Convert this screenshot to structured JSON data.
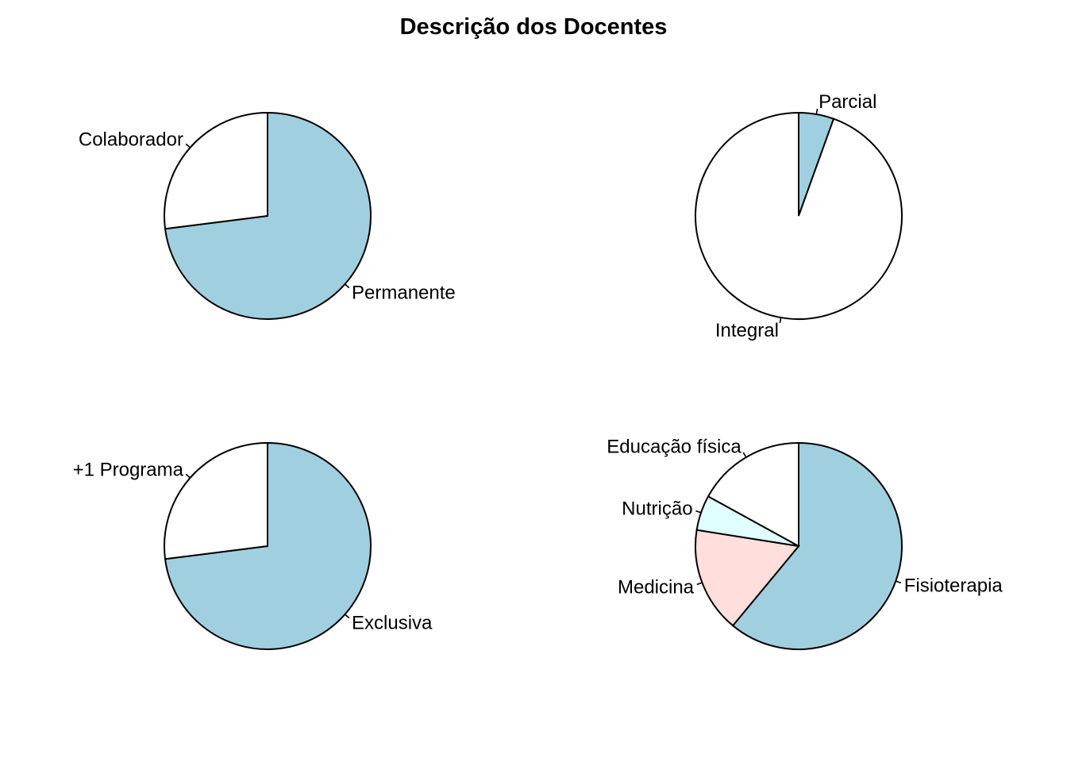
{
  "title": "Descrição dos Docentes",
  "chart_data": [
    {
      "type": "pie",
      "categories": [
        "Permanente",
        "Colaborador"
      ],
      "values": [
        73,
        27
      ],
      "colors": [
        "#a0cfe0",
        "#ffffff"
      ]
    },
    {
      "type": "pie",
      "categories": [
        "Parcial",
        "Integral"
      ],
      "values": [
        5.5,
        94.5
      ],
      "colors": [
        "#a0cfe0",
        "#ffffff"
      ]
    },
    {
      "type": "pie",
      "categories": [
        "Exclusiva",
        "+1 Programa"
      ],
      "values": [
        73,
        27
      ],
      "colors": [
        "#a0cfe0",
        "#ffffff"
      ]
    },
    {
      "type": "pie",
      "categories": [
        "Fisioterapia",
        "Medicina",
        "Nutrição",
        "Educação física"
      ],
      "values": [
        61,
        16.5,
        5.5,
        17
      ],
      "colors": [
        "#a0cfe0",
        "#ffdedc",
        "#e0ffff",
        "#ffffff"
      ]
    }
  ]
}
